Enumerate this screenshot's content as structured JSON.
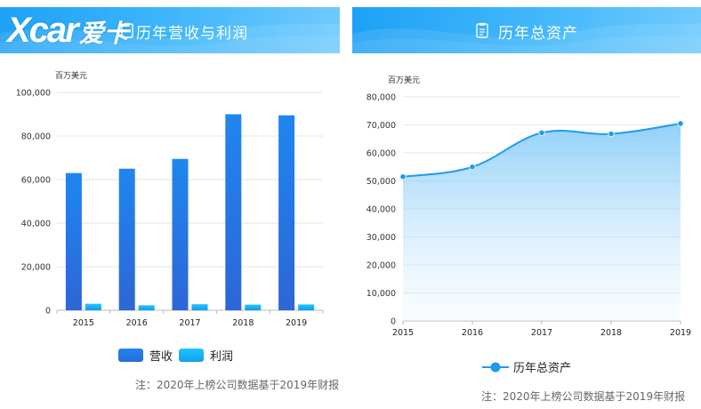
{
  "watermark": {
    "logo_latin": "Xcar",
    "logo_cn": "爱卡"
  },
  "left": {
    "title": "历年营收与利润",
    "unit": "百万美元",
    "legend": {
      "revenue": "营收",
      "profit": "利润"
    },
    "note": "注：2020年上榜公司数据基于2019年财报"
  },
  "right": {
    "title": "历年总资产",
    "icon": "clipboard-icon",
    "unit": "百万美元",
    "legend": {
      "assets": "历年总资产"
    },
    "note": "注：2020年上榜公司数据基于2019年财报"
  },
  "colors": {
    "revenue": "#1f7ae8",
    "profit": "#1ab2f5",
    "assets": "#1e9bee",
    "header": "#1ea1f6"
  },
  "chart_data": [
    {
      "type": "bar",
      "title": "历年营收与利润",
      "ylabel": "百万美元",
      "categories": [
        "2015",
        "2016",
        "2017",
        "2018",
        "2019"
      ],
      "series": [
        {
          "name": "营收",
          "values": [
            63000,
            65000,
            69500,
            90000,
            89500
          ]
        },
        {
          "name": "利润",
          "values": [
            3000,
            2300,
            2800,
            2600,
            2700
          ]
        }
      ],
      "ylim": [
        0,
        100000
      ],
      "yticks": [
        "0",
        "20,000",
        "40,000",
        "60,000",
        "80,000",
        "100,000"
      ],
      "grid": true,
      "legend_position": "bottom"
    },
    {
      "type": "area",
      "title": "历年总资产",
      "ylabel": "百万美元",
      "x": [
        "2015",
        "2016",
        "2017",
        "2018",
        "2019"
      ],
      "series": [
        {
          "name": "历年总资产",
          "values": [
            51500,
            55000,
            67200,
            66800,
            70500
          ]
        }
      ],
      "ylim": [
        0,
        80000
      ],
      "yticks": [
        "0",
        "10,000",
        "20,000",
        "30,000",
        "40,000",
        "50,000",
        "60,000",
        "70,000",
        "80,000"
      ],
      "grid": true,
      "legend_position": "bottom"
    }
  ]
}
